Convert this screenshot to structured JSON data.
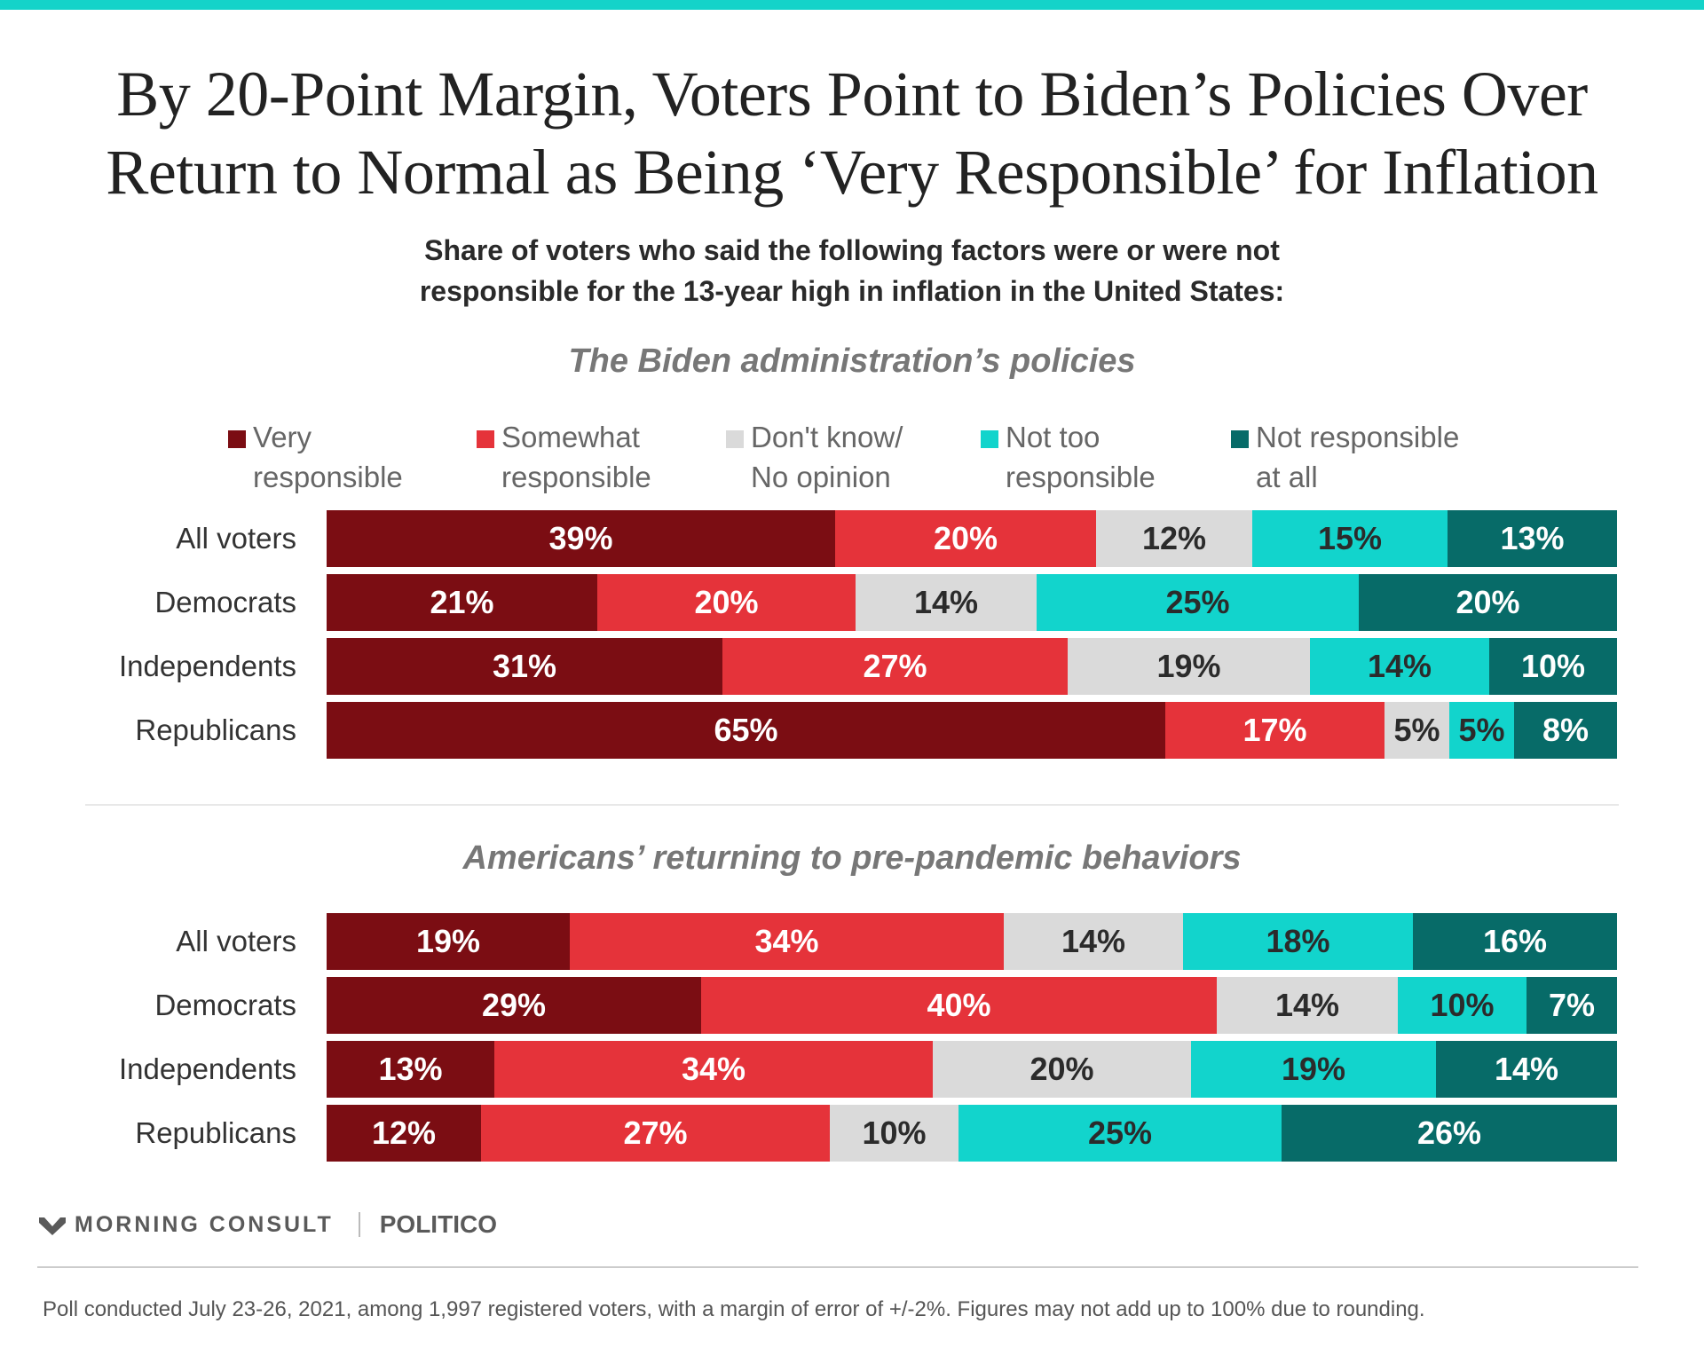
{
  "title": {
    "line1": "By 20-Point Margin, Voters Point to Biden’s Policies Over",
    "line2": "Return to Normal as Being ‘Very Responsible’ for Inflation"
  },
  "subtitle": {
    "line1": "Share of voters who said the following factors were or were not",
    "line2": "responsible for the 13-year high in inflation in the United States:"
  },
  "legend": [
    {
      "line1": "Very",
      "line2": "responsible",
      "color": "#7b0d13"
    },
    {
      "line1": "Somewhat",
      "line2": "responsible",
      "color": "#e5333a"
    },
    {
      "line1": "Don't know/",
      "line2": "No opinion",
      "color": "#dadada"
    },
    {
      "line1": "Not too",
      "line2": "responsible",
      "color": "#12d4cc"
    },
    {
      "line1": "Not responsible",
      "line2": "at all",
      "color": "#076b68"
    }
  ],
  "chart_data": [
    {
      "type": "bar",
      "orientation": "horizontal-stacked",
      "title": "The Biden administration’s policies",
      "categories": [
        "All voters",
        "Democrats",
        "Independents",
        "Republicans"
      ],
      "series": [
        {
          "name": "Very responsible",
          "values": [
            39,
            21,
            31,
            65
          ]
        },
        {
          "name": "Somewhat responsible",
          "values": [
            20,
            20,
            27,
            17
          ]
        },
        {
          "name": "Don't know/No opinion",
          "values": [
            12,
            14,
            19,
            5
          ]
        },
        {
          "name": "Not too responsible",
          "values": [
            15,
            25,
            14,
            5
          ]
        },
        {
          "name": "Not responsible at all",
          "values": [
            13,
            20,
            10,
            8
          ]
        }
      ]
    },
    {
      "type": "bar",
      "orientation": "horizontal-stacked",
      "title": "Americans’ returning to pre-pandemic behaviors",
      "categories": [
        "All voters",
        "Democrats",
        "Independents",
        "Republicans"
      ],
      "series": [
        {
          "name": "Very responsible",
          "values": [
            19,
            29,
            13,
            12
          ]
        },
        {
          "name": "Somewhat responsible",
          "values": [
            34,
            40,
            34,
            27
          ]
        },
        {
          "name": "Don't know/No opinion",
          "values": [
            14,
            14,
            20,
            10
          ]
        },
        {
          "name": "Not too responsible",
          "values": [
            18,
            10,
            19,
            25
          ]
        },
        {
          "name": "Not responsible at all",
          "values": [
            16,
            7,
            14,
            26
          ]
        }
      ]
    }
  ],
  "brand": {
    "morning_consult": "MORNING CONSULT",
    "politico": "POLITICO"
  },
  "footnote": "Poll conducted July 23-26, 2021, among 1,997 registered voters, with a margin of error of +/-2%. Figures may not add up to 100% due to rounding."
}
